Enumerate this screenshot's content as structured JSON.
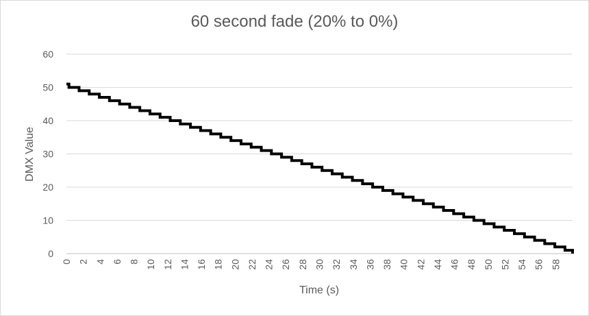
{
  "chart_data": {
    "type": "line",
    "title": "60 second fade (20% to 0%)",
    "xlabel": "Time (s)",
    "ylabel": "DMX Value",
    "xlim": [
      0,
      60
    ],
    "ylim": [
      0,
      60
    ],
    "y_ticks": [
      0,
      10,
      20,
      30,
      40,
      50,
      60
    ],
    "x_ticks": [
      0,
      2,
      4,
      6,
      8,
      10,
      12,
      14,
      16,
      18,
      20,
      22,
      24,
      26,
      28,
      30,
      32,
      34,
      36,
      38,
      40,
      42,
      44,
      46,
      48,
      50,
      52,
      54,
      56,
      58
    ],
    "step": "stepwise from 51 at t=0 down by 1 per step to 0 at t=60",
    "x": [
      0,
      0.3,
      1.5,
      2.7,
      3.9,
      5.1,
      6.3,
      7.5,
      8.7,
      9.9,
      11.1,
      12.3,
      13.5,
      14.7,
      15.9,
      17.1,
      18.3,
      19.5,
      20.7,
      21.9,
      23.1,
      24.3,
      25.5,
      26.7,
      27.9,
      29.1,
      30.3,
      31.5,
      32.7,
      33.9,
      35.1,
      36.3,
      37.5,
      38.7,
      39.9,
      41.1,
      42.3,
      43.5,
      44.7,
      45.9,
      47.1,
      48.3,
      49.5,
      50.7,
      51.9,
      53.1,
      54.3,
      55.5,
      56.7,
      57.9,
      59.1,
      60
    ],
    "y": [
      51,
      50,
      49,
      48,
      47,
      46,
      45,
      44,
      43,
      42,
      41,
      40,
      39,
      38,
      37,
      36,
      35,
      34,
      33,
      32,
      31,
      30,
      29,
      28,
      27,
      26,
      25,
      24,
      23,
      22,
      21,
      20,
      19,
      18,
      17,
      16,
      15,
      14,
      13,
      12,
      11,
      10,
      9,
      8,
      7,
      6,
      5,
      4,
      3,
      2,
      1,
      0
    ],
    "line_color": "#000000",
    "grid": true
  }
}
